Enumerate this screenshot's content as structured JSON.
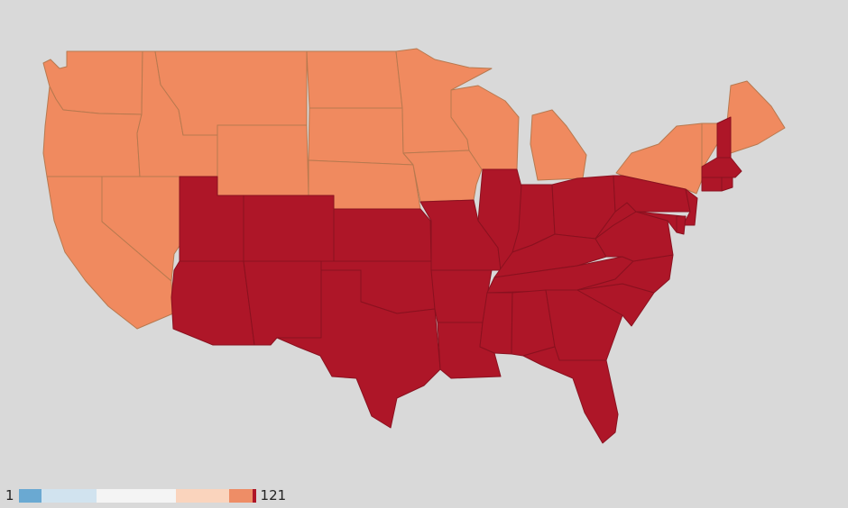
{
  "colors": {
    "background": "#d9d9d9",
    "low_bin": "#f08a5f",
    "high_bin": "#ae1628"
  },
  "legend": {
    "min_label": "1",
    "max_label": "121",
    "bins": [
      {
        "color": "#6aa9d2"
      },
      {
        "color": "#d1e3ef"
      },
      {
        "color": "#f4f4f4"
      },
      {
        "color": "#fad4bd"
      },
      {
        "color": "#ee8d66"
      },
      {
        "color": "#ae1628"
      }
    ]
  },
  "states": [
    {
      "id": "WA",
      "bin": "low"
    },
    {
      "id": "OR",
      "bin": "low"
    },
    {
      "id": "CA",
      "bin": "low"
    },
    {
      "id": "NV",
      "bin": "low"
    },
    {
      "id": "ID",
      "bin": "low"
    },
    {
      "id": "MT",
      "bin": "low"
    },
    {
      "id": "WY",
      "bin": "low"
    },
    {
      "id": "ND",
      "bin": "low"
    },
    {
      "id": "SD",
      "bin": "low"
    },
    {
      "id": "NE",
      "bin": "low"
    },
    {
      "id": "MN",
      "bin": "low"
    },
    {
      "id": "IA",
      "bin": "low"
    },
    {
      "id": "WI",
      "bin": "low"
    },
    {
      "id": "MI",
      "bin": "low"
    },
    {
      "id": "NY",
      "bin": "low"
    },
    {
      "id": "VT",
      "bin": "low"
    },
    {
      "id": "ME",
      "bin": "low"
    },
    {
      "id": "UT",
      "bin": "high"
    },
    {
      "id": "AZ",
      "bin": "high"
    },
    {
      "id": "CO",
      "bin": "high"
    },
    {
      "id": "NM",
      "bin": "high"
    },
    {
      "id": "KS",
      "bin": "high"
    },
    {
      "id": "OK",
      "bin": "high"
    },
    {
      "id": "TX",
      "bin": "high"
    },
    {
      "id": "MO",
      "bin": "high"
    },
    {
      "id": "AR",
      "bin": "high"
    },
    {
      "id": "LA",
      "bin": "high"
    },
    {
      "id": "IL",
      "bin": "high"
    },
    {
      "id": "IN",
      "bin": "high"
    },
    {
      "id": "OH",
      "bin": "high"
    },
    {
      "id": "KY",
      "bin": "high"
    },
    {
      "id": "TN",
      "bin": "high"
    },
    {
      "id": "MS",
      "bin": "high"
    },
    {
      "id": "AL",
      "bin": "high"
    },
    {
      "id": "GA",
      "bin": "high"
    },
    {
      "id": "FL",
      "bin": "high"
    },
    {
      "id": "SC",
      "bin": "high"
    },
    {
      "id": "NC",
      "bin": "high"
    },
    {
      "id": "VA",
      "bin": "high"
    },
    {
      "id": "WV",
      "bin": "high"
    },
    {
      "id": "PA",
      "bin": "high"
    },
    {
      "id": "NJ",
      "bin": "high"
    },
    {
      "id": "MD",
      "bin": "high"
    },
    {
      "id": "DE",
      "bin": "high"
    },
    {
      "id": "NH",
      "bin": "high"
    },
    {
      "id": "MA",
      "bin": "high"
    },
    {
      "id": "CT",
      "bin": "high"
    },
    {
      "id": "RI",
      "bin": "high"
    }
  ]
}
